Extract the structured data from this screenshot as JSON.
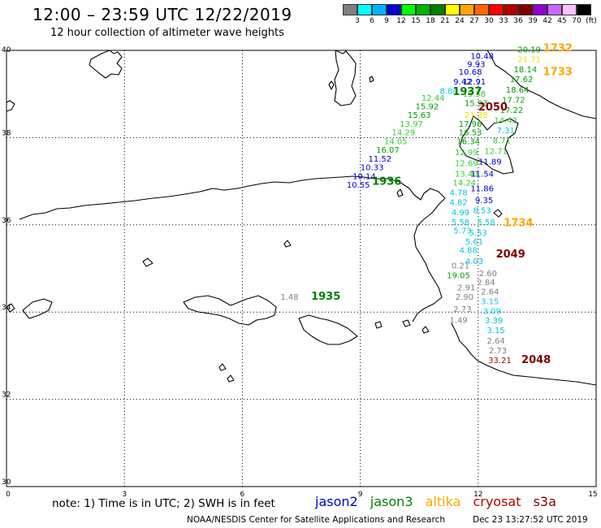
{
  "header": {
    "title": "12:00 – 23:59 UTC 12/22/2019",
    "subtitle": "12 hour collection of altimeter wave heights"
  },
  "scale": {
    "colors": [
      "#7f7f7f",
      "#00ffff",
      "#00b3ff",
      "#0000cd",
      "#00ff00",
      "#00b300",
      "#007f00",
      "#ffff00",
      "#ffa500",
      "#ff6600",
      "#ff0000",
      "#b30000",
      "#7f0000",
      "#9400d3",
      "#cc66ff",
      "#ffc0ff",
      "#000000"
    ],
    "labels": [
      "3",
      "6",
      "9",
      "12",
      "15",
      "18",
      "21",
      "24",
      "27",
      "30",
      "33",
      "36",
      "39",
      "42",
      "45",
      "70",
      "(ft)"
    ]
  },
  "axes": {
    "x_ticks": [
      "0",
      "3",
      "6",
      "9",
      "12",
      "15"
    ],
    "y_ticks": [
      "40",
      "38",
      "36",
      "34",
      "32",
      "30"
    ]
  },
  "colors": {
    "jason2": "#0000cd",
    "jason3": "#007f00",
    "altika": "#ffa500",
    "cryosat": "#b30000",
    "s3a": "#7f0000",
    "sat_grey": "#7f7f7f",
    "sat_cyan": "#00c8e0",
    "sat_lightgreen": "#33cc33",
    "sat_green": "#00a000",
    "sat_yellow": "#e6e600"
  },
  "observations": [
    {
      "text": "10.48",
      "lon": 12.1,
      "lat": 39.8,
      "color": "jason2"
    },
    {
      "text": "9.93",
      "lon": 11.95,
      "lat": 39.62,
      "color": "jason2"
    },
    {
      "text": "10.68",
      "lon": 11.8,
      "lat": 39.44,
      "color": "jason2"
    },
    {
      "text": "9.42",
      "lon": 11.6,
      "lat": 39.22,
      "color": "jason2"
    },
    {
      "text": "12.91",
      "lon": 11.9,
      "lat": 39.22,
      "color": "jason2"
    },
    {
      "text": "8.84",
      "lon": 11.25,
      "lat": 39.0,
      "color": "sat_cyan"
    },
    {
      "text": "15.58",
      "lon": 11.9,
      "lat": 38.94,
      "color": "sat_lightgreen"
    },
    {
      "text": "12.44",
      "lon": 10.85,
      "lat": 38.85,
      "color": "sat_lightgreen"
    },
    {
      "text": "15.92",
      "lon": 10.7,
      "lat": 38.65,
      "color": "sat_green"
    },
    {
      "text": "15.93",
      "lon": 11.95,
      "lat": 38.72,
      "color": "sat_green"
    },
    {
      "text": "15.63",
      "lon": 10.5,
      "lat": 38.45,
      "color": "sat_green"
    },
    {
      "text": "21.38",
      "lon": 11.95,
      "lat": 38.45,
      "color": "sat_yellow"
    },
    {
      "text": "13.97",
      "lon": 10.3,
      "lat": 38.25,
      "color": "sat_lightgreen"
    },
    {
      "text": "17.96",
      "lon": 11.8,
      "lat": 38.25,
      "color": "sat_green"
    },
    {
      "text": "14.29",
      "lon": 10.1,
      "lat": 38.05,
      "color": "sat_lightgreen"
    },
    {
      "text": "16.53",
      "lon": 11.8,
      "lat": 38.05,
      "color": "sat_green"
    },
    {
      "text": "14.05",
      "lon": 9.9,
      "lat": 37.85,
      "color": "sat_lightgreen"
    },
    {
      "text": "16.34",
      "lon": 11.75,
      "lat": 37.85,
      "color": "sat_green"
    },
    {
      "text": "16.07",
      "lon": 9.7,
      "lat": 37.65,
      "color": "sat_green"
    },
    {
      "text": "12.99",
      "lon": 11.7,
      "lat": 37.6,
      "color": "sat_lightgreen"
    },
    {
      "text": "11.52",
      "lon": 9.5,
      "lat": 37.45,
      "color": "jason2"
    },
    {
      "text": "12.69",
      "lon": 11.7,
      "lat": 37.35,
      "color": "sat_lightgreen"
    },
    {
      "text": "10.33",
      "lon": 9.3,
      "lat": 37.25,
      "color": "jason2"
    },
    {
      "text": "13.40",
      "lon": 11.7,
      "lat": 37.1,
      "color": "sat_lightgreen"
    },
    {
      "text": "10.14",
      "lon": 9.1,
      "lat": 37.05,
      "color": "jason2"
    },
    {
      "text": "10.55",
      "lon": 8.95,
      "lat": 36.85,
      "color": "jason2"
    },
    {
      "text": "14.24",
      "lon": 11.65,
      "lat": 36.9,
      "color": "sat_lightgreen"
    },
    {
      "text": "4.78",
      "lon": 11.5,
      "lat": 36.68,
      "color": "sat_cyan"
    },
    {
      "text": "4.82",
      "lon": 11.5,
      "lat": 36.45,
      "color": "sat_cyan"
    },
    {
      "text": "4.99",
      "lon": 11.55,
      "lat": 36.22,
      "color": "sat_cyan"
    },
    {
      "text": "5.58",
      "lon": 11.55,
      "lat": 36.0,
      "color": "sat_cyan"
    },
    {
      "text": "5.58",
      "lon": 12.2,
      "lat": 36.0,
      "color": "sat_cyan"
    },
    {
      "text": "5.73",
      "lon": 11.6,
      "lat": 35.8,
      "color": "sat_cyan"
    },
    {
      "text": "5.53",
      "lon": 12.0,
      "lat": 35.75,
      "color": "sat_cyan"
    },
    {
      "text": "5.61",
      "lon": 11.9,
      "lat": 35.55,
      "color": "sat_cyan"
    },
    {
      "text": "4.88",
      "lon": 11.75,
      "lat": 35.35,
      "color": "sat_cyan"
    },
    {
      "text": "0.21",
      "lon": 11.55,
      "lat": 35.0,
      "color": "sat_grey"
    },
    {
      "text": "4.03",
      "lon": 11.9,
      "lat": 35.1,
      "color": "sat_cyan"
    },
    {
      "text": "19.05",
      "lon": 11.5,
      "lat": 34.78,
      "color": "sat_green"
    },
    {
      "text": "2.60",
      "lon": 12.25,
      "lat": 34.82,
      "color": "sat_grey"
    },
    {
      "text": "2.91",
      "lon": 11.7,
      "lat": 34.5,
      "color": "sat_grey"
    },
    {
      "text": "2.84",
      "lon": 12.2,
      "lat": 34.62,
      "color": "sat_grey"
    },
    {
      "text": "2.64",
      "lon": 12.3,
      "lat": 34.4,
      "color": "sat_grey"
    },
    {
      "text": "2.90",
      "lon": 11.65,
      "lat": 34.28,
      "color": "sat_grey"
    },
    {
      "text": "3.15",
      "lon": 12.3,
      "lat": 34.18,
      "color": "sat_cyan"
    },
    {
      "text": "2.73",
      "lon": 11.6,
      "lat": 34.0,
      "color": "sat_grey"
    },
    {
      "text": "3.09",
      "lon": 12.35,
      "lat": 33.96,
      "color": "sat_cyan"
    },
    {
      "text": "1.49",
      "lon": 11.5,
      "lat": 33.75,
      "color": "sat_grey"
    },
    {
      "text": "3.39",
      "lon": 12.4,
      "lat": 33.74,
      "color": "sat_cyan"
    },
    {
      "text": "3.15",
      "lon": 12.45,
      "lat": 33.52,
      "color": "sat_cyan"
    },
    {
      "text": "2.64",
      "lon": 12.45,
      "lat": 33.28,
      "color": "sat_grey"
    },
    {
      "text": "2.73",
      "lon": 12.5,
      "lat": 33.05,
      "color": "sat_grey"
    },
    {
      "text": "33.21",
      "lon": 12.55,
      "lat": 32.83,
      "color": "cryosat"
    },
    {
      "text": "1.48",
      "lon": 7.2,
      "lat": 34.28,
      "color": "sat_grey"
    },
    {
      "text": "20.19",
      "lon": 13.3,
      "lat": 39.95,
      "color": "sat_green"
    },
    {
      "text": "21.71",
      "lon": 13.3,
      "lat": 39.73,
      "color": "sat_yellow"
    },
    {
      "text": "18.14",
      "lon": 13.2,
      "lat": 39.5,
      "color": "sat_green"
    },
    {
      "text": "17.62",
      "lon": 13.1,
      "lat": 39.27,
      "color": "sat_green"
    },
    {
      "text": "18.64",
      "lon": 13.0,
      "lat": 39.03,
      "color": "sat_green"
    },
    {
      "text": "17.72",
      "lon": 12.9,
      "lat": 38.8,
      "color": "sat_green"
    },
    {
      "text": "17.22",
      "lon": 12.85,
      "lat": 38.57,
      "color": "sat_green"
    },
    {
      "text": "14.42",
      "lon": 12.7,
      "lat": 38.33,
      "color": "sat_lightgreen"
    },
    {
      "text": "7.31",
      "lon": 12.7,
      "lat": 38.1,
      "color": "sat_cyan"
    },
    {
      "text": "8.71",
      "lon": 12.6,
      "lat": 37.87,
      "color": "sat_lightgreen"
    },
    {
      "text": "12.71",
      "lon": 12.45,
      "lat": 37.63,
      "color": "sat_lightgreen"
    },
    {
      "text": "11.89",
      "lon": 12.3,
      "lat": 37.38,
      "color": "jason2"
    },
    {
      "text": "11.54",
      "lon": 12.1,
      "lat": 37.1,
      "color": "jason2"
    },
    {
      "text": "11.86",
      "lon": 12.1,
      "lat": 36.77,
      "color": "jason2"
    },
    {
      "text": "9.35",
      "lon": 12.15,
      "lat": 36.5,
      "color": "jason2"
    },
    {
      "text": "8.53",
      "lon": 12.1,
      "lat": 36.27,
      "color": "sat_cyan"
    }
  ],
  "passes": [
    {
      "text": "1732",
      "lon": 13.65,
      "lat": 39.97,
      "color": "altika"
    },
    {
      "text": "1733",
      "lon": 13.65,
      "lat": 39.43,
      "color": "altika"
    },
    {
      "text": "1937",
      "lon": 11.35,
      "lat": 38.98,
      "color": "jason3"
    },
    {
      "text": "2050",
      "lon": 12.0,
      "lat": 38.62,
      "color": "s3a"
    },
    {
      "text": "1936",
      "lon": 9.3,
      "lat": 36.92,
      "color": "jason3"
    },
    {
      "text": "1734",
      "lon": 12.65,
      "lat": 35.97,
      "color": "altika"
    },
    {
      "text": "2049",
      "lon": 12.45,
      "lat": 35.25,
      "color": "s3a"
    },
    {
      "text": "1935",
      "lon": 7.75,
      "lat": 34.28,
      "color": "jason3"
    },
    {
      "text": "2048",
      "lon": 13.1,
      "lat": 32.83,
      "color": "s3a"
    }
  ],
  "note": "note:  1) Time is in UTC;  2) SWH is in feet",
  "satellites": [
    {
      "name": "jason2",
      "color": "jason2"
    },
    {
      "name": "jason3",
      "color": "jason3"
    },
    {
      "name": "altika",
      "color": "altika"
    },
    {
      "name": "cryosat",
      "color": "cryosat"
    },
    {
      "name": "s3a",
      "color": "s3a"
    }
  ],
  "footer": {
    "source": "NOAA/NESDIS Center for Satellite Applications and Research",
    "generated": "Dec 23 13:27:52 UTC 2019"
  }
}
